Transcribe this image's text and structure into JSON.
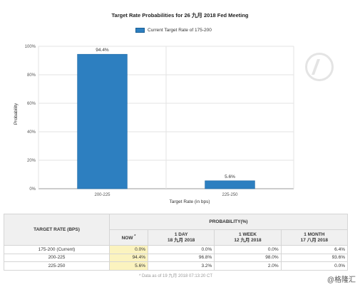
{
  "chart_data": {
    "type": "bar",
    "title": "Target Rate Probabilities for 26 九月 2018 Fed Meeting",
    "legend": "Current Target Rate of 175-200",
    "legend_position": "top-center",
    "categories": [
      "200-225",
      "225-250"
    ],
    "values": [
      94.4,
      5.6
    ],
    "data_labels": [
      "94.4%",
      "5.6%"
    ],
    "xlabel": "Target Rate (in bps)",
    "ylabel": "Probability",
    "ylim": [
      0,
      100
    ],
    "yticks": [
      "0%",
      "20%",
      "40%",
      "60%",
      "80%",
      "100%"
    ],
    "grid": true,
    "bar_color": "#2d7fc0"
  },
  "table": {
    "col_target": "TARGET RATE (BPS)",
    "col_probability": "PROBABILITY(%)",
    "sub_cols": [
      {
        "line1": "NOW",
        "line2": "*"
      },
      {
        "line1": "1 DAY",
        "line2": "18 九月 2018"
      },
      {
        "line1": "1 WEEK",
        "line2": "12 九月 2018"
      },
      {
        "line1": "1 MONTH",
        "line2": "17 八月 2018"
      }
    ],
    "rows": [
      {
        "rate": "175-200 (Current)",
        "now": "0.0%",
        "day": "0.0%",
        "week": "0.0%",
        "month": "6.4%"
      },
      {
        "rate": "200-225",
        "now": "94.4%",
        "day": "96.8%",
        "week": "98.0%",
        "month": "93.6%"
      },
      {
        "rate": "225-250",
        "now": "5.6%",
        "day": "3.2%",
        "week": "2.0%",
        "month": "0.0%"
      }
    ],
    "footnote": "* Data as of 19 九月 2018 07:13:20 CT"
  },
  "watermark": "@格隆汇"
}
